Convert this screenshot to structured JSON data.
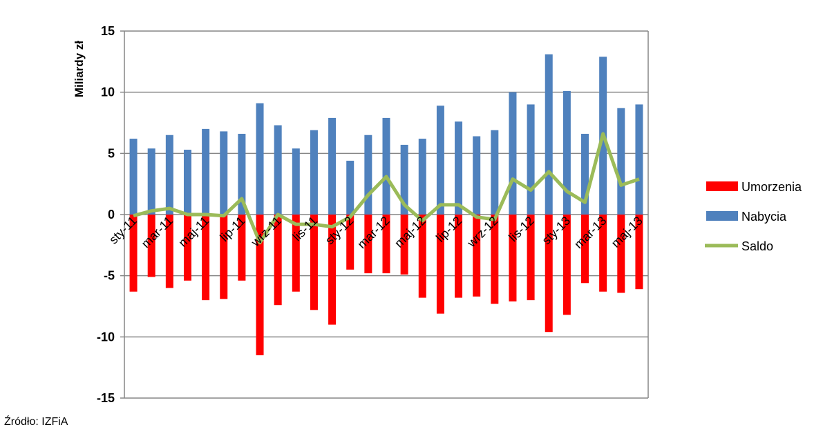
{
  "chart_data": {
    "type": "bar",
    "y_label": "Miliardy zł",
    "source": "Źródło: IZFiA",
    "categories": [
      "sty-11",
      null,
      "mar-11",
      null,
      "maj-11",
      null,
      "lip-11",
      null,
      "wrz-11",
      null,
      "lis-11",
      null,
      "sty-12",
      null,
      "mar-12",
      null,
      "maj-12",
      null,
      "lip-12",
      null,
      "wrz-12",
      null,
      "lis-12",
      null,
      "sty-13",
      null,
      "mar-13",
      null,
      "maj-13"
    ],
    "series": [
      {
        "name": "Umorzenia",
        "color": "#ff0000",
        "type": "bar",
        "values": [
          -6.3,
          -5.1,
          -6.0,
          -5.4,
          -7.0,
          -6.9,
          -5.4,
          -11.5,
          -7.4,
          -6.3,
          -7.8,
          -9.0,
          -4.5,
          -4.8,
          -4.8,
          -4.9,
          -6.8,
          -8.1,
          -6.8,
          -6.7,
          -7.3,
          -7.1,
          -7.0,
          -9.6,
          -8.2,
          -5.6,
          -6.3,
          -6.4,
          -6.1
        ]
      },
      {
        "name": "Nabycia",
        "color": "#4f81bd",
        "type": "bar",
        "values": [
          6.2,
          5.4,
          6.5,
          5.3,
          7.0,
          6.8,
          6.6,
          9.1,
          7.3,
          5.4,
          6.9,
          7.9,
          4.4,
          6.5,
          7.9,
          5.7,
          6.2,
          8.9,
          7.6,
          6.4,
          6.9,
          10.0,
          9.0,
          13.1,
          10.1,
          6.6,
          12.9,
          8.7,
          9.0
        ]
      },
      {
        "name": "Saldo",
        "color": "#9bbb59",
        "type": "line",
        "values": [
          -0.1,
          0.3,
          0.5,
          0.0,
          0.0,
          -0.1,
          1.3,
          -2.3,
          0.0,
          -0.8,
          -0.8,
          -1.0,
          -0.2,
          1.6,
          3.1,
          0.8,
          -0.5,
          0.8,
          0.8,
          -0.2,
          -0.4,
          2.9,
          2.0,
          3.5,
          1.9,
          1.0,
          6.6,
          2.4,
          2.9
        ]
      }
    ],
    "ylim": [
      -15,
      15
    ],
    "yticks": [
      -15,
      -10,
      -5,
      0,
      5,
      10,
      15
    ],
    "grid": true,
    "legend": "right"
  }
}
